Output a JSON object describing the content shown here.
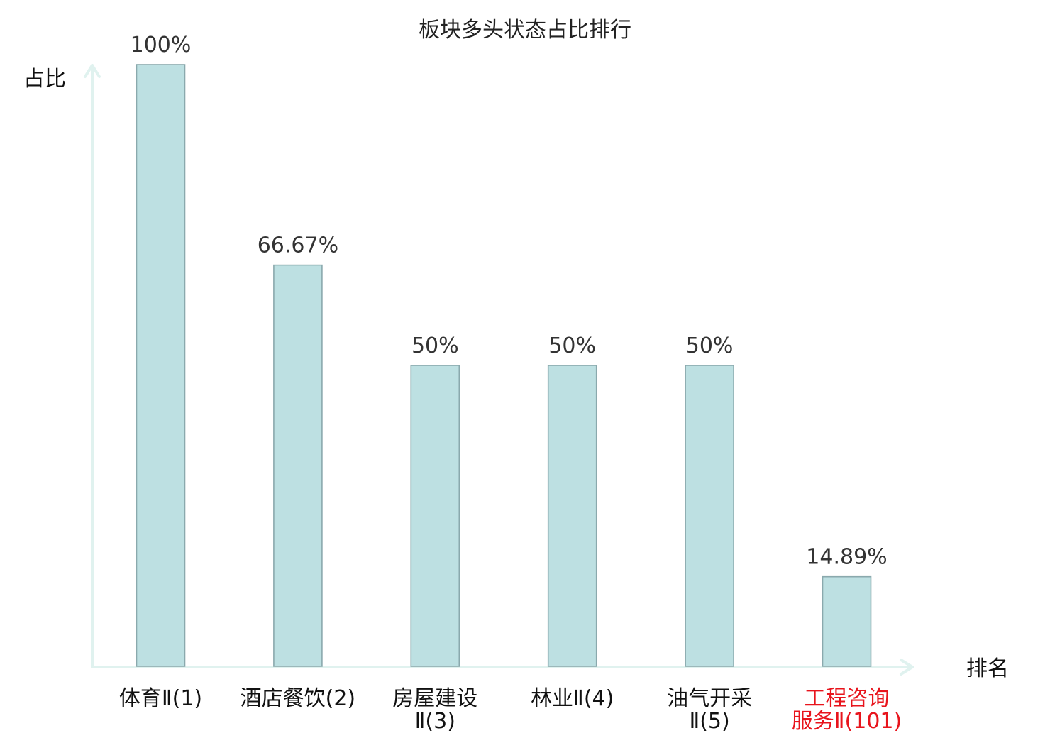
{
  "chart_data": {
    "type": "bar",
    "title": "板块多头状态占比排行",
    "ylabel": "占比",
    "xlabel": "排名",
    "ylim": [
      0,
      100
    ],
    "grid": false,
    "categories": [
      [
        "体育Ⅱ(1)"
      ],
      [
        "酒店餐饮(2)"
      ],
      [
        "房屋建设",
        "Ⅱ(3)"
      ],
      [
        "林业Ⅱ(4)"
      ],
      [
        "油气开采",
        "Ⅱ(5)"
      ],
      [
        "工程咨询",
        "服务Ⅱ(101)"
      ]
    ],
    "values": [
      100,
      66.67,
      50,
      50,
      50,
      14.89
    ],
    "value_labels": [
      "100%",
      "66.67%",
      "50%",
      "50%",
      "50%",
      "14.89%"
    ],
    "highlight_index": 5,
    "colors": {
      "bar_fill": "#bde0e2",
      "bar_stroke": "#8aa9ad",
      "axis": "#e0f2ef",
      "highlight_text": "#e8141c"
    }
  }
}
